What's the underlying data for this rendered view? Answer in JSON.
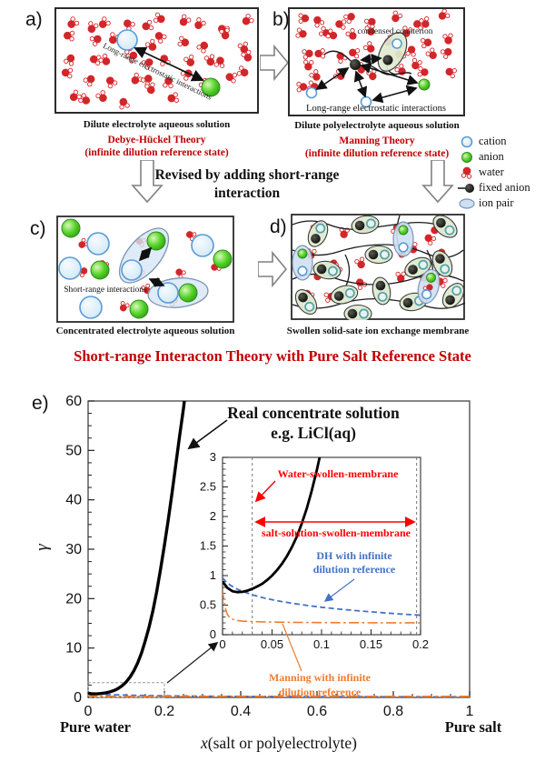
{
  "figure": {
    "panels": {
      "a": {
        "label": "a)",
        "caption": "Dilute electrolyte aqueous solution",
        "theory": "Debye-Hückel Theory",
        "theory_sub": "(infinite dilution reference state)",
        "annotation": "Long-range electrostatic interactions"
      },
      "b": {
        "label": "b)",
        "caption": "Dilute polyelectrolyte aqueous solution",
        "theory": "Manning Theory",
        "theory_sub": "(infinite dilution reference state)",
        "annotation": "Long-range electrostatic interactions",
        "annotation2": "condensed counterion"
      },
      "c": {
        "label": "c)",
        "caption": "Concentrated electrolyte aqueous solution",
        "annotation": "Short-range interactions"
      },
      "d": {
        "label": "d)",
        "caption": "Swollen solid-sate ion exchange membrane"
      },
      "e": {
        "label": "e)"
      }
    },
    "middle_text_line1": "Revised by adding short-range",
    "middle_text_line2": "interaction",
    "banner": "Short-range Interacton Theory with Pure Salt Reference State",
    "legend": {
      "items": [
        {
          "icon": "cation-icon",
          "label": "cation"
        },
        {
          "icon": "anion-icon",
          "label": "anion"
        },
        {
          "icon": "water-icon",
          "label": "water"
        },
        {
          "icon": "fixed-anion-icon",
          "label": "fixed anion"
        },
        {
          "icon": "ion-pair-icon",
          "label": "ion pair"
        }
      ]
    },
    "colors": {
      "water": "#D3262A",
      "cation_stroke": "#5B9BD5",
      "cation_fill": "#DCEDF8",
      "anion": "#44C522",
      "ion_pair_fill": "#CFE0F2",
      "ion_pair_stroke": "#7A95B5",
      "counterion_fill": "#DFEAD0",
      "red": "#FF0000",
      "crimson": "#C00000",
      "dh_blue": "#4472C4",
      "manning_orange": "#ED7D31"
    }
  },
  "chart_data": {
    "type": "line",
    "main": {
      "xlabel_italic": "x",
      "xlabel_rest": "(salt or polyelectrolyte)",
      "ylabel": "γ",
      "xlim": [
        0,
        1
      ],
      "ylim": [
        0,
        60
      ],
      "xticks": [
        0,
        0.2,
        0.4,
        0.6,
        0.8,
        1
      ],
      "yticks": [
        0,
        10,
        20,
        30,
        40,
        50,
        60
      ],
      "left_label": "Pure water",
      "right_label": "Pure salt",
      "annotation_line1": "Real concentrate solution",
      "annotation_line2": "e.g. LiCl(aq)",
      "zoom_box": {
        "x": [
          0,
          0.2
        ],
        "y": [
          0,
          3
        ]
      }
    },
    "inset": {
      "xlim": [
        0,
        0.2
      ],
      "ylim": [
        0,
        3
      ],
      "xticks": [
        0,
        0.05,
        0.1,
        0.15,
        0.2
      ],
      "yticks": [
        0,
        0.5,
        1,
        1.5,
        2,
        2.5,
        3
      ],
      "vlines": [
        0.03,
        0.196
      ],
      "labels": {
        "water_swollen": "Water-swollen-membrane",
        "salt_solution": "salt-solution-swollen-membrane",
        "dh_line1": "DH with infinite",
        "dh_line2": "dilution reference",
        "manning_line1": "Manning with infinite",
        "manning_line2": "dilution reference"
      }
    },
    "series": [
      {
        "name": "Real concentrate solution e.g. LiCl(aq)",
        "color": "#000000",
        "style": "solid",
        "points": [
          [
            0,
            0.9
          ],
          [
            0.005,
            0.79
          ],
          [
            0.01,
            0.735
          ],
          [
            0.015,
            0.72
          ],
          [
            0.02,
            0.725
          ],
          [
            0.025,
            0.745
          ],
          [
            0.03,
            0.775
          ],
          [
            0.035,
            0.815
          ],
          [
            0.04,
            0.86
          ],
          [
            0.045,
            0.925
          ],
          [
            0.05,
            1.0
          ],
          [
            0.055,
            1.09
          ],
          [
            0.06,
            1.2
          ],
          [
            0.065,
            1.33
          ],
          [
            0.07,
            1.48
          ],
          [
            0.075,
            1.66
          ],
          [
            0.08,
            1.88
          ],
          [
            0.085,
            2.13
          ],
          [
            0.09,
            2.43
          ],
          [
            0.095,
            2.77
          ],
          [
            0.1,
            3.15
          ],
          [
            0.11,
            4.15
          ],
          [
            0.12,
            5.4
          ],
          [
            0.13,
            7.0
          ],
          [
            0.14,
            9.0
          ],
          [
            0.15,
            11.5
          ],
          [
            0.16,
            14.3
          ],
          [
            0.17,
            17.6
          ],
          [
            0.18,
            21.5
          ],
          [
            0.19,
            26.0
          ],
          [
            0.2,
            30.8
          ],
          [
            0.21,
            35.9
          ],
          [
            0.22,
            41.4
          ],
          [
            0.23,
            47.2
          ],
          [
            0.24,
            53.0
          ],
          [
            0.25,
            58.5
          ],
          [
            0.253,
            60.5
          ]
        ]
      },
      {
        "name": "DH with infinite dilution reference",
        "color": "#4472C4",
        "style": "dashed",
        "points": [
          [
            0,
            0.96
          ],
          [
            0.004,
            0.89
          ],
          [
            0.008,
            0.835
          ],
          [
            0.012,
            0.795
          ],
          [
            0.016,
            0.762
          ],
          [
            0.02,
            0.735
          ],
          [
            0.03,
            0.675
          ],
          [
            0.04,
            0.63
          ],
          [
            0.05,
            0.592
          ],
          [
            0.06,
            0.56
          ],
          [
            0.07,
            0.532
          ],
          [
            0.08,
            0.507
          ],
          [
            0.09,
            0.485
          ],
          [
            0.1,
            0.465
          ],
          [
            0.12,
            0.43
          ],
          [
            0.14,
            0.4
          ],
          [
            0.16,
            0.374
          ],
          [
            0.18,
            0.35
          ],
          [
            0.2,
            0.33
          ],
          [
            0.25,
            0.29
          ],
          [
            0.3,
            0.26
          ],
          [
            0.4,
            0.22
          ],
          [
            0.5,
            0.19
          ],
          [
            0.6,
            0.165
          ],
          [
            0.7,
            0.145
          ],
          [
            0.8,
            0.13
          ],
          [
            0.9,
            0.115
          ],
          [
            1,
            0.105
          ]
        ]
      },
      {
        "name": "Manning with infinite dilution reference",
        "color": "#ED7D31",
        "style": "dashdot",
        "points": [
          [
            0,
            0.76
          ],
          [
            0.001,
            0.63
          ],
          [
            0.002,
            0.52
          ],
          [
            0.003,
            0.44
          ],
          [
            0.004,
            0.38
          ],
          [
            0.005,
            0.34
          ],
          [
            0.007,
            0.295
          ],
          [
            0.009,
            0.27
          ],
          [
            0.012,
            0.25
          ],
          [
            0.016,
            0.237
          ],
          [
            0.02,
            0.23
          ],
          [
            0.03,
            0.221
          ],
          [
            0.05,
            0.213
          ],
          [
            0.08,
            0.207
          ],
          [
            0.12,
            0.203
          ],
          [
            0.16,
            0.201
          ],
          [
            0.2,
            0.2
          ],
          [
            0.3,
            0.2
          ],
          [
            0.45,
            0.2
          ],
          [
            0.6,
            0.2
          ],
          [
            0.75,
            0.2
          ],
          [
            0.9,
            0.2
          ],
          [
            1,
            0.2
          ]
        ]
      }
    ]
  }
}
